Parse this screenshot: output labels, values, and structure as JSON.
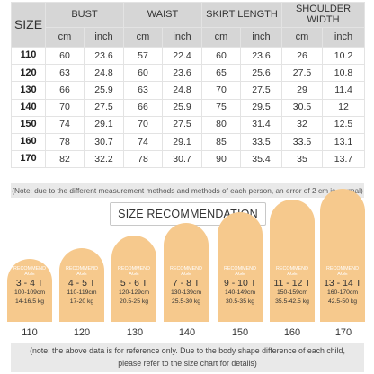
{
  "table": {
    "size_header": "SIZE",
    "groups": [
      "BUST",
      "WAIST",
      "SKIRT LENGTH",
      "SHOULDER WIDTH"
    ],
    "units": [
      "cm",
      "inch",
      "cm",
      "inch",
      "cm",
      "inch",
      "cm",
      "inch"
    ],
    "rows": [
      {
        "size": "110",
        "values": [
          "60",
          "23.6",
          "57",
          "22.4",
          "60",
          "23.6",
          "26",
          "10.2"
        ]
      },
      {
        "size": "120",
        "values": [
          "63",
          "24.8",
          "60",
          "23.6",
          "65",
          "25.6",
          "27.5",
          "10.8"
        ]
      },
      {
        "size": "130",
        "values": [
          "66",
          "25.9",
          "63",
          "24.8",
          "70",
          "27.5",
          "29",
          "11.4"
        ]
      },
      {
        "size": "140",
        "values": [
          "70",
          "27.5",
          "66",
          "25.9",
          "75",
          "29.5",
          "30.5",
          "12"
        ]
      },
      {
        "size": "150",
        "values": [
          "74",
          "29.1",
          "70",
          "27.5",
          "80",
          "31.4",
          "32",
          "12.5"
        ]
      },
      {
        "size": "160",
        "values": [
          "78",
          "30.7",
          "74",
          "29.1",
          "85",
          "33.5",
          "33.5",
          "13.1"
        ]
      },
      {
        "size": "170",
        "values": [
          "82",
          "32.2",
          "78",
          "30.7",
          "90",
          "35.4",
          "35",
          "13.7"
        ]
      }
    ]
  },
  "note": "(Note: due to the different measurement methods and methods of each person, an error of 2 cm is normal)",
  "recommendation": {
    "title": "SIZE RECOMMENDATION",
    "cards": [
      {
        "label": "RECOMMEND AGE",
        "age": "3 - 4 T",
        "height": "100-109cm",
        "weight": "14-16.5 kg",
        "size": "110"
      },
      {
        "label": "RECOMMEND AGE",
        "age": "4 - 5 T",
        "height": "110-119cm",
        "weight": "17-20 kg",
        "size": "120"
      },
      {
        "label": "RECOMMEND AGE",
        "age": "5 - 6 T",
        "height": "120-129cm",
        "weight": "20.5-25 kg",
        "size": "130"
      },
      {
        "label": "RECOMMEND AGE",
        "age": "7 - 8 T",
        "height": "130-139cm",
        "weight": "25.5-30 kg",
        "size": "140"
      },
      {
        "label": "RECOMMEND AGE",
        "age": "9 - 10 T",
        "height": "140-149cm",
        "weight": "30.5-35 kg",
        "size": "150"
      },
      {
        "label": "RECOMMEND AGE",
        "age": "11 - 12 T",
        "height": "150-159cm",
        "weight": "35.5-42.5 kg",
        "size": "160"
      },
      {
        "label": "RECOMMEND AGE",
        "age": "13 - 14 T",
        "height": "160-170cm",
        "weight": "42.5-50 kg",
        "size": "170"
      }
    ]
  },
  "bottom_note": {
    "line1": "(note: the above data is for reference only. Due to the body shape difference of each child,",
    "line2": "please refer to the size chart for details)"
  },
  "colors": {
    "card_fill": "#f6c98d",
    "header_fill": "#d6d6d6",
    "note_fill": "#e9e9e9"
  }
}
